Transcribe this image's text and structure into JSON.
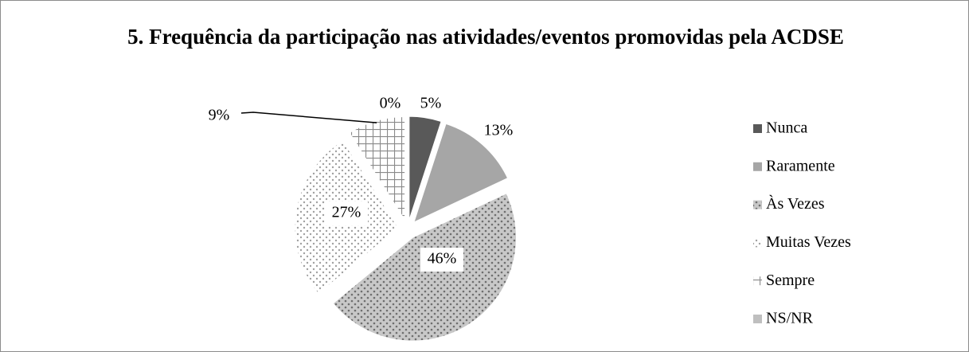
{
  "chart_data": {
    "type": "pie",
    "title": "5. Frequência da participação nas atividades/eventos promovidas pela ACDSE",
    "categories": [
      "Nunca",
      "Raramente",
      "Às Vezes",
      "Muitas Vezes",
      "Sempre",
      "NS/NR"
    ],
    "values": [
      5,
      13,
      46,
      27,
      9,
      0
    ],
    "value_labels": [
      "5%",
      "13%",
      "46%",
      "27%",
      "9%",
      "0%"
    ],
    "colors": [
      "#595959",
      "#a6a6a6",
      "#8c8c8c",
      "#d0d0d0",
      "#9a9a9a",
      "#bfbfbf"
    ],
    "legend": "right"
  }
}
